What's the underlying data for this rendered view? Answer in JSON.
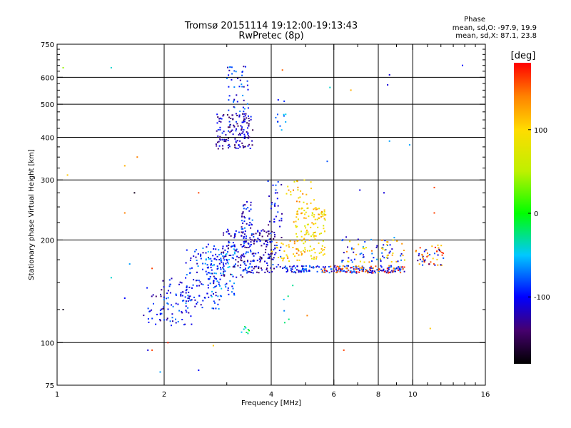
{
  "chart_data": {
    "type": "scatter",
    "title": "Tromsø 20151114 19:12:00-19:13:43",
    "subtitle": "RwPretec (8p)",
    "phase_info": {
      "heading": "Phase",
      "line_o": "mean, sd,O: -97.9, 19.9",
      "line_x": "mean, sd,X: 87.1, 23.8"
    },
    "xlabel": "Frequency [MHz]",
    "ylabel": "Stationary phase Virtual Height [km]",
    "x_scale": "log",
    "y_scale": "log",
    "xlim": [
      1,
      16
    ],
    "ylim": [
      75,
      750
    ],
    "x_ticks": [
      1,
      2,
      4,
      6,
      8,
      10,
      16
    ],
    "x_tick_labels": [
      "1",
      "2",
      "4",
      "6",
      "8",
      "10",
      "16"
    ],
    "x_grid": [
      2,
      4,
      6,
      8,
      10
    ],
    "y_ticks": [
      75,
      100,
      200,
      300,
      400,
      500,
      600,
      750
    ],
    "y_tick_labels": [
      "75",
      "100",
      "200",
      "300",
      "400",
      "500",
      "600",
      "750"
    ],
    "y_grid": [
      100,
      200,
      300,
      400,
      500,
      600
    ],
    "grid": true,
    "colorbar": {
      "label": "[deg]",
      "min": -180,
      "max": 180,
      "ticks": [
        100,
        0,
        -100
      ],
      "tick_labels": [
        "100",
        "0",
        "-100"
      ]
    },
    "clusters": [
      {
        "xrange": [
          1.75,
          2.0
        ],
        "yrange": [
          110,
          150
        ],
        "phase": -110,
        "count": 25
      },
      {
        "xrange": [
          1.95,
          2.4
        ],
        "yrange": [
          112,
          155
        ],
        "phase": -100,
        "count": 70
      },
      {
        "xrange": [
          2.3,
          2.9
        ],
        "yrange": [
          125,
          190
        ],
        "phase": -95,
        "count": 110
      },
      {
        "xrange": [
          2.6,
          3.2
        ],
        "yrange": [
          135,
          200
        ],
        "phase": -80,
        "count": 90
      },
      {
        "xrange": [
          2.9,
          3.4
        ],
        "yrange": [
          155,
          215
        ],
        "phase": -115,
        "count": 90
      },
      {
        "xrange": [
          3.3,
          3.55
        ],
        "yrange": [
          160,
          260
        ],
        "phase": -100,
        "count": 80
      },
      {
        "xrange": [
          3.5,
          4.1
        ],
        "yrange": [
          160,
          215
        ],
        "phase": -120,
        "count": 100
      },
      {
        "xrange": [
          3.9,
          4.3
        ],
        "yrange": [
          165,
          300
        ],
        "phase": -105,
        "count": 50
      },
      {
        "xrange": [
          2.8,
          3.55
        ],
        "yrange": [
          370,
          470
        ],
        "phase": -120,
        "count": 140
      },
      {
        "xrange": [
          3.0,
          3.45
        ],
        "yrange": [
          470,
          650
        ],
        "phase": -95,
        "count": 45
      },
      {
        "xrange": [
          4.1,
          4.4
        ],
        "yrange": [
          420,
          520
        ],
        "phase": -80,
        "count": 12
      },
      {
        "xrange": [
          4.6,
          5.7
        ],
        "yrange": [
          175,
          250
        ],
        "phase": 100,
        "count": 130
      },
      {
        "xrange": [
          4.4,
          5.3
        ],
        "yrange": [
          255,
          300
        ],
        "phase": 110,
        "count": 25
      },
      {
        "xrange": [
          4.0,
          5.0
        ],
        "yrange": [
          172,
          200
        ],
        "phase": 110,
        "count": 35
      },
      {
        "xrange": [
          4.3,
          9.5
        ],
        "yrange": [
          160,
          168
        ],
        "phase": -100,
        "count": 180
      },
      {
        "xrange": [
          5.5,
          9.5
        ],
        "yrange": [
          160,
          168
        ],
        "phase": 150,
        "count": 60
      },
      {
        "xrange": [
          6.2,
          9.5
        ],
        "yrange": [
          170,
          205
        ],
        "phase": -90,
        "count": 50
      },
      {
        "xrange": [
          6.5,
          9.5
        ],
        "yrange": [
          172,
          200
        ],
        "phase": 110,
        "count": 35
      },
      {
        "xrange": [
          10.2,
          12.2
        ],
        "yrange": [
          168,
          195
        ],
        "phase": 140,
        "count": 35
      },
      {
        "xrange": [
          10.2,
          12.2
        ],
        "yrange": [
          168,
          195
        ],
        "phase": -110,
        "count": 20
      },
      {
        "xrange": [
          3.3,
          3.5
        ],
        "yrange": [
          106,
          112
        ],
        "phase": -30,
        "count": 8
      },
      {
        "xrange": [
          4.3,
          4.6
        ],
        "yrange": [
          110,
          150
        ],
        "phase": -50,
        "count": 6
      }
    ],
    "sparse_points": [
      {
        "x": 1.04,
        "y": 640,
        "phase": 40
      },
      {
        "x": 1.42,
        "y": 640,
        "phase": -40
      },
      {
        "x": 1.07,
        "y": 310,
        "phase": 110
      },
      {
        "x": 1.55,
        "y": 330,
        "phase": 120
      },
      {
        "x": 1.55,
        "y": 240,
        "phase": 140
      },
      {
        "x": 1.68,
        "y": 350,
        "phase": 140
      },
      {
        "x": 1.65,
        "y": 275,
        "phase": -170
      },
      {
        "x": 1.6,
        "y": 170,
        "phase": -60
      },
      {
        "x": 1.55,
        "y": 135,
        "phase": -100
      },
      {
        "x": 1.42,
        "y": 155,
        "phase": -40
      },
      {
        "x": 1.04,
        "y": 125,
        "phase": -170
      },
      {
        "x": 1.85,
        "y": 165,
        "phase": 160
      },
      {
        "x": 1.8,
        "y": 95,
        "phase": -110
      },
      {
        "x": 1.85,
        "y": 95,
        "phase": 160
      },
      {
        "x": 1.95,
        "y": 82,
        "phase": -60
      },
      {
        "x": 2.05,
        "y": 100,
        "phase": 170
      },
      {
        "x": 2.5,
        "y": 83,
        "phase": -100
      },
      {
        "x": 2.5,
        "y": 275,
        "phase": 160
      },
      {
        "x": 4.3,
        "y": 630,
        "phase": 150
      },
      {
        "x": 5.75,
        "y": 340,
        "phase": -80
      },
      {
        "x": 5.85,
        "y": 560,
        "phase": -40
      },
      {
        "x": 6.7,
        "y": 550,
        "phase": 120
      },
      {
        "x": 8.6,
        "y": 610,
        "phase": -110
      },
      {
        "x": 8.5,
        "y": 570,
        "phase": -110
      },
      {
        "x": 8.6,
        "y": 390,
        "phase": -60
      },
      {
        "x": 9.8,
        "y": 380,
        "phase": -60
      },
      {
        "x": 13.8,
        "y": 650,
        "phase": -100
      },
      {
        "x": 7.1,
        "y": 280,
        "phase": -110
      },
      {
        "x": 8.3,
        "y": 275,
        "phase": -110
      },
      {
        "x": 11.5,
        "y": 285,
        "phase": 160
      },
      {
        "x": 11.5,
        "y": 240,
        "phase": 160
      },
      {
        "x": 11.2,
        "y": 110,
        "phase": 110
      },
      {
        "x": 6.4,
        "y": 95,
        "phase": 160
      },
      {
        "x": 5.05,
        "y": 120,
        "phase": 140
      },
      {
        "x": 2.75,
        "y": 98,
        "phase": 110
      }
    ]
  }
}
